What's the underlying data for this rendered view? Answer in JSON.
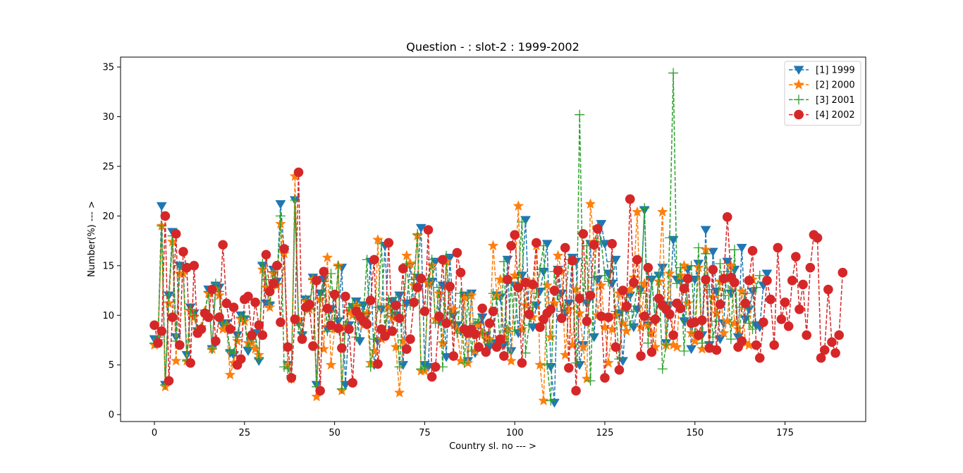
{
  "chart_data": {
    "type": "line",
    "title": "Question - : slot-2 : 1999-2002",
    "xlabel": "Country sl. no --- >",
    "ylabel": "Number(%) --- >",
    "xlim": [
      -9.4,
      197.4
    ],
    "ylim": [
      -0.7,
      36.0
    ],
    "xticks": [
      0,
      25,
      50,
      75,
      100,
      125,
      150,
      175
    ],
    "yticks": [
      0,
      5,
      10,
      15,
      20,
      25,
      30,
      35
    ],
    "legend_position": "top-right",
    "grid": false,
    "series": [
      {
        "name": "[1] 1999",
        "color": "#1f77b4",
        "marker": "triangle-down",
        "linestyle": "dashed",
        "values": [
          7.6,
          7.2,
          21.0,
          3.0,
          12.0,
          18.4,
          7.8,
          15.0,
          14.8,
          6.0,
          10.8,
          10.2,
          8.4,
          8.6,
          10.2,
          12.6,
          6.6,
          13.0,
          12.8,
          9.0,
          9.2,
          6.2,
          6.0,
          8.0,
          10.0,
          9.6,
          6.4,
          7.6,
          8.2,
          5.4,
          15.0,
          11.2,
          11.0,
          14.6,
          13.4,
          21.2,
          16.6,
          5.0,
          3.6,
          21.6,
          9.2,
          8.0,
          11.6,
          10.8,
          13.8,
          3.0,
          12.2,
          13.6,
          8.6,
          10.6,
          12.0,
          9.4,
          14.8,
          3.0,
          9.0,
          10.8,
          11.4,
          7.4,
          11.0,
          10.0,
          15.4,
          5.0,
          7.4,
          10.6,
          17.0,
          8.2,
          11.4,
          10.0,
          12.0,
          5.0,
          11.2,
          15.0,
          11.2,
          13.8,
          18.8,
          5.0,
          4.8,
          13.4,
          15.4,
          9.4,
          13.0,
          5.8,
          15.8,
          10.0,
          9.0,
          8.4,
          12.0,
          5.4,
          12.2,
          6.2,
          9.0,
          9.8,
          8.0,
          6.8,
          7.2,
          12.0,
          11.8,
          7.0,
          15.6,
          6.4,
          13.0,
          8.2,
          14.0,
          19.6,
          10.0,
          8.8,
          11.0,
          12.4,
          14.4,
          17.2,
          4.8,
          1.2,
          14.6,
          12.2,
          10.2,
          11.2,
          15.8,
          15.4,
          5.0,
          7.0,
          11.2,
          17.2,
          7.8,
          13.6,
          19.2,
          17.2,
          14.2,
          13.2,
          15.6,
          10.2,
          5.4,
          10.6,
          12.0,
          8.8,
          10.6,
          12.6,
          20.6,
          9.0,
          13.6,
          9.4,
          14.0,
          14.8,
          7.2,
          11.0,
          17.6,
          13.6,
          13.4,
          9.4,
          14.6,
          6.6,
          13.6,
          15.2,
          8.0,
          18.6,
          7.0,
          16.4,
          12.4,
          7.6,
          9.2,
          15.4,
          12.2,
          14.6,
          7.8,
          16.8,
          9.6,
          10.6,
          12.4,
          9.0,
          8.8,
          13.0,
          14.2
        ],
        "x_start": 0
      },
      {
        "name": "[2] 2000",
        "color": "#ff7f0e",
        "marker": "star",
        "linestyle": "dashed",
        "values": [
          7.0,
          7.4,
          19.0,
          2.8,
          11.2,
          17.4,
          5.4,
          14.2,
          14.2,
          5.4,
          10.4,
          9.8,
          8.2,
          8.8,
          10.4,
          12.2,
          6.6,
          12.6,
          12.0,
          8.6,
          9.0,
          4.0,
          5.2,
          7.4,
          9.6,
          9.4,
          7.2,
          7.2,
          6.6,
          6.0,
          14.6,
          12.8,
          10.8,
          14.2,
          13.0,
          19.2,
          16.2,
          5.0,
          3.6,
          24.0,
          9.6,
          7.6,
          11.4,
          10.6,
          13.6,
          1.8,
          11.6,
          6.6,
          15.8,
          5.0,
          8.6,
          15.0,
          2.4,
          8.8,
          10.4,
          10.0,
          11.0,
          9.8,
          9.0,
          10.2,
          5.2,
          6.4,
          17.6,
          7.6,
          8.4,
          10.8,
          9.8,
          6.8,
          2.2,
          7.4,
          16.0,
          15.2,
          13.0,
          18.0,
          4.4,
          4.4,
          13.2,
          15.0,
          9.6,
          12.2,
          7.2,
          15.4,
          9.2,
          10.6,
          8.6,
          5.4,
          11.8,
          5.2,
          12.0,
          6.4,
          9.0,
          8.2,
          7.6,
          7.6,
          17.0,
          12.0,
          13.6,
          7.8,
          8.6,
          5.4,
          14.0,
          21.0,
          8.6,
          11.0,
          13.4,
          9.8,
          17.0,
          5.0,
          1.4,
          13.0,
          7.8,
          11.2,
          16.0,
          14.4,
          6.0,
          10.6,
          7.0,
          12.6,
          10.2,
          6.8,
          3.6,
          21.2,
          17.4,
          10.0,
          13.0,
          8.8,
          5.2,
          8.6,
          10.0,
          12.2,
          9.2,
          8.4,
          12.6,
          13.8,
          20.4,
          8.8,
          13.2,
          9.0,
          8.2,
          6.8,
          13.4,
          20.4,
          7.0,
          14.2,
          7.0,
          6.8,
          14.0,
          15.0,
          11.2,
          8.2,
          7.4,
          14.8,
          6.6,
          16.6,
          6.8,
          11.8,
          10.2,
          13.4,
          8.2,
          9.4,
          15.0,
          9.2,
          8.6,
          12.4,
          7.2,
          7.0,
          13.6
        ],
        "x_start": 0
      },
      {
        "name": "[3] 2001",
        "color": "#2ca02c",
        "marker": "plus",
        "linestyle": "dashed",
        "values": [
          7.2,
          7.8,
          19.0,
          3.0,
          12.0,
          18.0,
          7.4,
          15.0,
          14.6,
          5.4,
          10.6,
          10.0,
          8.6,
          8.6,
          10.2,
          12.4,
          6.6,
          13.2,
          12.4,
          9.2,
          9.0,
          6.4,
          6.2,
          7.8,
          9.8,
          9.8,
          6.8,
          7.6,
          8.0,
          5.6,
          15.2,
          13.6,
          11.2,
          14.4,
          13.2,
          20.0,
          4.8,
          4.6,
          3.8,
          21.6,
          9.0,
          8.2,
          11.6,
          10.6,
          13.6,
          2.8,
          12.0,
          13.4,
          8.4,
          14.2,
          9.6,
          15.0,
          2.6,
          9.0,
          10.8,
          11.2,
          7.8,
          11.0,
          10.2,
          15.6,
          4.8,
          7.6,
          10.8,
          17.2,
          8.0,
          11.6,
          10.2,
          11.8,
          4.8,
          11.0,
          15.2,
          11.0,
          13.6,
          18.2,
          4.6,
          4.8,
          13.6,
          15.6,
          9.2,
          12.8,
          4.8,
          16.0,
          10.2,
          9.2,
          8.2,
          12.2,
          5.2,
          12.0,
          6.4,
          9.2,
          9.6,
          8.2,
          6.6,
          7.4,
          12.2,
          11.6,
          7.2,
          15.4,
          6.2,
          13.2,
          8.4,
          13.8,
          19.4,
          6.2,
          9.0,
          10.8,
          12.2,
          14.6,
          17.0,
          5.0,
          1.4,
          14.4,
          12.0,
          10.4,
          11.0,
          15.6,
          15.2,
          5.2,
          30.2,
          11.4,
          17.0,
          3.4,
          13.8,
          19.0,
          17.4,
          14.0,
          13.4,
          15.4,
          10.4,
          5.6,
          10.4,
          11.8,
          9.0,
          10.4,
          12.8,
          12.2,
          20.8,
          7.2,
          13.8,
          9.6,
          14.2,
          4.6,
          7.0,
          17.8,
          34.4,
          13.2,
          14.8,
          6.4,
          13.4,
          15.0,
          8.2,
          16.8,
          7.2,
          16.2,
          12.6,
          7.8,
          9.4,
          15.2,
          12.0,
          14.4,
          7.6,
          16.6,
          6.8,
          10.8,
          12.2,
          9.2,
          8.6,
          12.8,
          14.0
        ],
        "x_start": 0
      },
      {
        "name": "[4] 2002",
        "color": "#d62728",
        "marker": "circle",
        "linestyle": "dashed",
        "values": [
          9.0,
          7.2,
          8.4,
          20.0,
          3.4,
          9.8,
          18.2,
          7.0,
          16.4,
          14.8,
          5.2,
          15.0,
          8.2,
          8.6,
          10.2,
          9.8,
          12.6,
          7.4,
          9.8,
          17.1,
          11.2,
          8.6,
          10.8,
          5.0,
          5.6,
          11.6,
          11.9,
          8.0,
          11.3,
          9.0,
          8.0,
          16.1,
          12.4,
          13.2,
          15.0,
          9.3,
          16.7,
          6.8,
          3.7,
          9.6,
          24.4,
          7.6,
          10.8,
          11.1,
          6.9,
          13.5,
          2.4,
          14.4,
          10.7,
          9.0,
          12.1,
          8.7,
          6.7,
          11.9,
          8.6,
          3.2,
          10.4,
          9.9,
          9.4,
          9.1,
          11.5,
          15.6,
          5.1,
          8.6,
          7.9,
          17.3,
          8.4,
          11.0,
          9.7,
          14.7,
          6.6,
          7.6,
          11.3,
          12.8,
          13.7,
          10.4,
          18.6,
          3.8,
          4.8,
          9.9,
          15.6,
          9.2,
          12.9,
          5.9,
          16.3,
          14.3,
          8.6,
          8.2,
          8.6,
          8.1,
          6.8,
          10.7,
          6.3,
          9.2,
          10.4,
          6.8,
          7.6,
          5.9,
          13.6,
          17.0,
          18.1,
          12.8,
          5.2,
          13.3,
          10.1,
          13.1,
          17.3,
          8.8,
          9.6,
          10.2,
          10.6,
          12.5,
          14.5,
          9.7,
          16.8,
          4.7,
          15.5,
          2.4,
          11.7,
          18.2,
          9.4,
          12.0,
          17.1,
          18.7,
          9.9,
          3.7,
          9.8,
          17.2,
          6.8,
          4.5,
          12.5,
          10.9,
          21.7,
          13.3,
          15.6,
          5.9,
          9.9,
          14.8,
          6.3,
          9.6,
          11.7,
          11.0,
          10.6,
          10.1,
          8.0,
          11.2,
          10.7,
          12.7,
          13.7,
          9.2,
          9.3,
          8.0,
          9.5,
          13.6,
          6.7,
          14.6,
          6.5,
          11.1,
          13.7,
          19.9,
          13.8,
          13.3,
          6.8,
          7.4,
          11.2,
          13.5,
          16.5,
          7.0,
          5.7,
          9.3,
          13.5,
          11.6,
          7.0,
          16.8,
          9.6,
          11.3,
          8.9,
          13.5,
          15.9,
          10.6,
          13.1,
          8.0,
          14.8,
          18.1,
          17.8,
          5.7,
          6.5,
          12.6,
          7.3,
          6.2,
          8.0,
          14.3
        ],
        "x_start": 0
      }
    ]
  }
}
